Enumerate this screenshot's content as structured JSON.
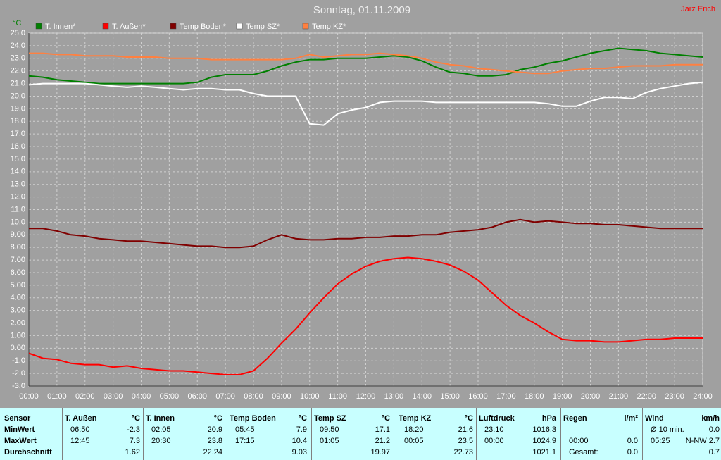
{
  "chart_data": {
    "type": "line",
    "title": "Sonntag, 01.11.2009",
    "author": "Jarz Erich",
    "y_unit": "°C",
    "grid": true,
    "x": [
      0,
      0.5,
      1,
      1.5,
      2,
      2.5,
      3,
      3.5,
      4,
      4.5,
      5,
      5.5,
      6,
      6.5,
      7,
      7.5,
      8,
      8.5,
      9,
      9.5,
      10,
      10.5,
      11,
      11.5,
      12,
      12.5,
      13,
      13.5,
      14,
      14.5,
      15,
      15.5,
      16,
      16.5,
      17,
      17.5,
      18,
      18.5,
      19,
      19.5,
      20,
      20.5,
      21,
      21.5,
      22,
      22.5,
      23,
      23.5,
      24
    ],
    "xlim": [
      0,
      24
    ],
    "xticks": [
      {
        "value": 0,
        "label": "00:00"
      },
      {
        "value": 1,
        "label": "01:00"
      },
      {
        "value": 2,
        "label": "02:00"
      },
      {
        "value": 3,
        "label": "03:00"
      },
      {
        "value": 4,
        "label": "04:00"
      },
      {
        "value": 5,
        "label": "05:00"
      },
      {
        "value": 6,
        "label": "06:00"
      },
      {
        "value": 7,
        "label": "07:00"
      },
      {
        "value": 8,
        "label": "08:00"
      },
      {
        "value": 9,
        "label": "09:00"
      },
      {
        "value": 10,
        "label": "10:00"
      },
      {
        "value": 11,
        "label": "11:00"
      },
      {
        "value": 12,
        "label": "12:00"
      },
      {
        "value": 13,
        "label": "13:00"
      },
      {
        "value": 14,
        "label": "14:00"
      },
      {
        "value": 15,
        "label": "15:00"
      },
      {
        "value": 16,
        "label": "16:00"
      },
      {
        "value": 17,
        "label": "17:00"
      },
      {
        "value": 18,
        "label": "18:00"
      },
      {
        "value": 19,
        "label": "19:00"
      },
      {
        "value": 20,
        "label": "20:00"
      },
      {
        "value": 21,
        "label": "21:00"
      },
      {
        "value": 22,
        "label": "22:00"
      },
      {
        "value": 23,
        "label": "23:00"
      },
      {
        "value": 24,
        "label": "24:00"
      }
    ],
    "ylim": [
      -3,
      25
    ],
    "yticks": [
      {
        "value": 25,
        "label": "25.0"
      },
      {
        "value": 24,
        "label": "24.0"
      },
      {
        "value": 23,
        "label": "23.0"
      },
      {
        "value": 22,
        "label": "22.0"
      },
      {
        "value": 21,
        "label": "21.0"
      },
      {
        "value": 20,
        "label": "20.0"
      },
      {
        "value": 19,
        "label": "19.0"
      },
      {
        "value": 18,
        "label": "18.0"
      },
      {
        "value": 17,
        "label": "17.0"
      },
      {
        "value": 16,
        "label": "16.0"
      },
      {
        "value": 15,
        "label": "15.0"
      },
      {
        "value": 14,
        "label": "14.0"
      },
      {
        "value": 13,
        "label": "13.0"
      },
      {
        "value": 12,
        "label": "12.0"
      },
      {
        "value": 11,
        "label": "11.0"
      },
      {
        "value": 10,
        "label": "10.0"
      },
      {
        "value": 9,
        "label": "9.00"
      },
      {
        "value": 8,
        "label": "8.00"
      },
      {
        "value": 7,
        "label": "7.00"
      },
      {
        "value": 6,
        "label": "6.00"
      },
      {
        "value": 5,
        "label": "5.00"
      },
      {
        "value": 4,
        "label": "4.00"
      },
      {
        "value": 3,
        "label": "3.00"
      },
      {
        "value": 2,
        "label": "2.00"
      },
      {
        "value": 1,
        "label": "1.00"
      },
      {
        "value": 0,
        "label": "0.00"
      },
      {
        "value": -1,
        "label": "-1.0"
      },
      {
        "value": -2,
        "label": "-2.0"
      },
      {
        "value": -3,
        "label": "-3.0"
      }
    ],
    "series": [
      {
        "name": "T. Innen*",
        "color": "#008000",
        "values": [
          21.6,
          21.5,
          21.3,
          21.2,
          21.1,
          21.0,
          21.0,
          21.0,
          21.0,
          21.0,
          21.0,
          21.0,
          21.1,
          21.5,
          21.7,
          21.7,
          21.7,
          22.0,
          22.4,
          22.7,
          22.9,
          22.9,
          23.0,
          23.0,
          23.0,
          23.1,
          23.2,
          23.1,
          22.8,
          22.3,
          21.9,
          21.8,
          21.6,
          21.6,
          21.7,
          22.1,
          22.3,
          22.6,
          22.8,
          23.1,
          23.4,
          23.6,
          23.8,
          23.7,
          23.6,
          23.4,
          23.3,
          23.2,
          23.1
        ]
      },
      {
        "name": "T. Außen*",
        "color": "#ff0000",
        "values": [
          -0.4,
          -0.8,
          -0.9,
          -1.2,
          -1.3,
          -1.3,
          -1.5,
          -1.4,
          -1.6,
          -1.7,
          -1.8,
          -1.8,
          -1.9,
          -2.0,
          -2.1,
          -2.1,
          -1.8,
          -0.8,
          0.4,
          1.5,
          2.8,
          4.0,
          5.1,
          5.9,
          6.5,
          6.9,
          7.1,
          7.2,
          7.1,
          6.9,
          6.6,
          6.1,
          5.4,
          4.4,
          3.4,
          2.6,
          2.0,
          1.3,
          0.7,
          0.6,
          0.6,
          0.5,
          0.5,
          0.6,
          0.7,
          0.7,
          0.8,
          0.8,
          0.8
        ]
      },
      {
        "name": "Temp Boden*",
        "color": "#800000",
        "values": [
          9.5,
          9.5,
          9.3,
          9.0,
          8.9,
          8.7,
          8.6,
          8.5,
          8.5,
          8.4,
          8.3,
          8.2,
          8.1,
          8.1,
          8.0,
          8.0,
          8.1,
          8.6,
          9.0,
          8.7,
          8.6,
          8.6,
          8.7,
          8.7,
          8.8,
          8.8,
          8.9,
          8.9,
          9.0,
          9.0,
          9.2,
          9.3,
          9.4,
          9.6,
          10.0,
          10.2,
          10.0,
          10.1,
          10.0,
          9.9,
          9.9,
          9.8,
          9.8,
          9.7,
          9.6,
          9.5,
          9.5,
          9.5,
          9.5
        ]
      },
      {
        "name": "Temp SZ*",
        "color": "#ffffff",
        "values": [
          20.9,
          21.0,
          21.0,
          21.0,
          21.0,
          20.9,
          20.8,
          20.7,
          20.8,
          20.7,
          20.6,
          20.5,
          20.6,
          20.6,
          20.5,
          20.5,
          20.2,
          20.0,
          20.0,
          20.0,
          17.8,
          17.7,
          18.6,
          18.9,
          19.1,
          19.5,
          19.6,
          19.6,
          19.6,
          19.5,
          19.5,
          19.5,
          19.5,
          19.5,
          19.5,
          19.5,
          19.5,
          19.4,
          19.2,
          19.2,
          19.6,
          19.9,
          19.9,
          19.8,
          20.3,
          20.6,
          20.8,
          21.0,
          21.1
        ]
      },
      {
        "name": "Temp KZ*",
        "color": "#ff8040",
        "values": [
          23.4,
          23.4,
          23.3,
          23.3,
          23.2,
          23.2,
          23.2,
          23.1,
          23.1,
          23.1,
          23.0,
          23.0,
          23.0,
          22.9,
          22.9,
          22.9,
          22.9,
          22.9,
          22.9,
          23.0,
          23.3,
          23.1,
          23.2,
          23.3,
          23.3,
          23.4,
          23.3,
          23.2,
          23.0,
          22.7,
          22.5,
          22.4,
          22.2,
          22.1,
          22.0,
          21.9,
          21.8,
          21.8,
          22.0,
          22.1,
          22.2,
          22.2,
          22.3,
          22.4,
          22.4,
          22.4,
          22.5,
          22.5,
          22.5
        ]
      }
    ]
  },
  "table": {
    "header": "Sensor",
    "columns": [
      {
        "name": "T. Außen",
        "unit": "°C"
      },
      {
        "name": "T. Innen",
        "unit": "°C"
      },
      {
        "name": "Temp Boden",
        "unit": "°C"
      },
      {
        "name": "Temp SZ",
        "unit": "°C"
      },
      {
        "name": "Temp KZ",
        "unit": "°C"
      },
      {
        "name": "Luftdruck",
        "unit": "hPa"
      },
      {
        "name": "Regen",
        "unit": "l/m²"
      },
      {
        "name": "Wind",
        "unit": "km/h"
      }
    ],
    "rows": [
      {
        "label": "MinWert",
        "cells": [
          {
            "time": "06:50",
            "value": "-2.3"
          },
          {
            "time": "02:05",
            "value": "20.9"
          },
          {
            "time": "05:45",
            "value": "7.9"
          },
          {
            "time": "09:50",
            "value": "17.1"
          },
          {
            "time": "18:20",
            "value": "21.6"
          },
          {
            "time": "23:10",
            "value": "1016.3"
          },
          null,
          {
            "time": "Ø 10 min.",
            "value": "0.0"
          }
        ]
      },
      {
        "label": "MaxWert",
        "cells": [
          {
            "time": "12:45",
            "value": "7.3"
          },
          {
            "time": "20:30",
            "value": "23.8"
          },
          {
            "time": "17:15",
            "value": "10.4"
          },
          {
            "time": "01:05",
            "value": "21.2"
          },
          {
            "time": "00:05",
            "value": "23.5"
          },
          {
            "time": "00:00",
            "value": "1024.9"
          },
          {
            "time": "00:00",
            "value": "0.0"
          },
          {
            "time": "05:25",
            "value": "N-NW 2.7"
          }
        ]
      },
      {
        "label": "Durchschnitt",
        "cells": [
          {
            "value": "1.62"
          },
          {
            "value": "22.24"
          },
          {
            "value": "9.03"
          },
          {
            "value": "19.97"
          },
          {
            "value": "22.73"
          },
          {
            "value": "1021.1"
          },
          {
            "time": "Gesamt:",
            "value": "0.0"
          },
          {
            "value": "0.7"
          }
        ]
      }
    ]
  }
}
